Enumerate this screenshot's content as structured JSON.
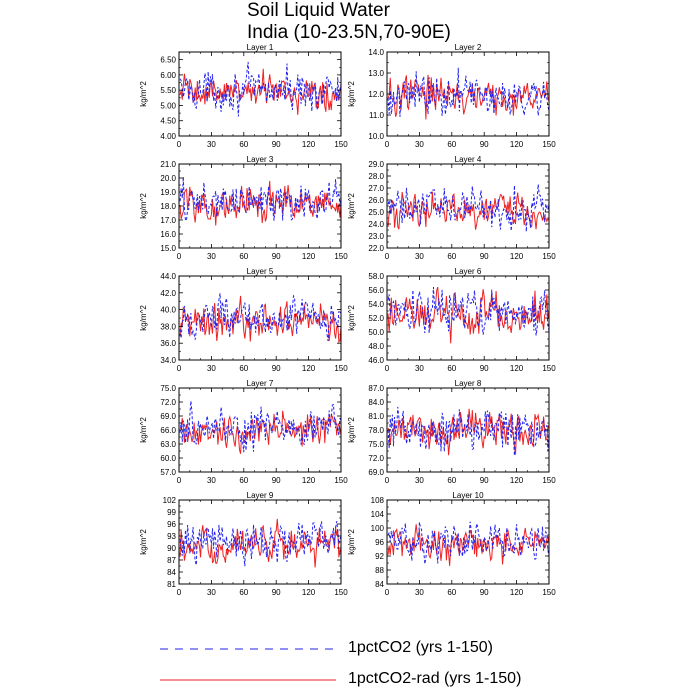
{
  "figure": {
    "title": "Soil Liquid Water",
    "subtitle": "India (10-23.5N,70-90E)"
  },
  "legend": {
    "entries": [
      {
        "label": "1pctCO2 (yrs 1-150)",
        "color": "#2222ee",
        "dash": "dashed"
      },
      {
        "label": "1pctCO2-rad (yrs 1-150)",
        "color": "#ee2222",
        "dash": "solid"
      }
    ]
  },
  "chart_data": [
    {
      "type": "line",
      "title": "Layer 1",
      "ylabel": "kg/m^2",
      "xlim": [
        0,
        150
      ],
      "ylim": [
        4.0,
        6.75
      ],
      "xticks": [
        0,
        30,
        60,
        90,
        120,
        150
      ],
      "xtick_labels": [
        "0",
        "30",
        "60",
        "90",
        "120",
        "150"
      ],
      "yticks": [
        4.0,
        4.5,
        5.0,
        5.5,
        6.0,
        6.5
      ],
      "ytick_labels": [
        "4.00",
        "4.50",
        "5.00",
        "5.50",
        "6.00",
        "6.50"
      ],
      "mean": 5.45,
      "amp": 0.35,
      "series": [
        {
          "name": "1pctCO2 (yrs 1-150)"
        },
        {
          "name": "1pctCO2-rad (yrs 1-150)"
        }
      ]
    },
    {
      "type": "line",
      "title": "Layer 2",
      "ylabel": "kg/m^2",
      "xlim": [
        0,
        150
      ],
      "ylim": [
        10.0,
        14.0
      ],
      "xticks": [
        0,
        30,
        60,
        90,
        120,
        150
      ],
      "xtick_labels": [
        "0",
        "30",
        "60",
        "90",
        "120",
        "150"
      ],
      "yticks": [
        10.0,
        11.0,
        12.0,
        13.0,
        14.0
      ],
      "ytick_labels": [
        "10.0",
        "11.0",
        "12.0",
        "13.0",
        "14.0"
      ],
      "mean": 11.9,
      "amp": 0.55,
      "series": [
        {
          "name": "1pctCO2 (yrs 1-150)"
        },
        {
          "name": "1pctCO2-rad (yrs 1-150)"
        }
      ]
    },
    {
      "type": "line",
      "title": "Layer 3",
      "ylabel": "kg/m^2",
      "xlim": [
        0,
        150
      ],
      "ylim": [
        15.0,
        21.0
      ],
      "xticks": [
        0,
        30,
        60,
        90,
        120,
        150
      ],
      "xtick_labels": [
        "0",
        "30",
        "60",
        "90",
        "120",
        "150"
      ],
      "yticks": [
        15.0,
        16.0,
        17.0,
        18.0,
        19.0,
        20.0,
        21.0
      ],
      "ytick_labels": [
        "15.0",
        "16.0",
        "17.0",
        "18.0",
        "19.0",
        "20.0",
        "21.0"
      ],
      "mean": 18.2,
      "amp": 0.8,
      "series": [
        {
          "name": "1pctCO2 (yrs 1-150)"
        },
        {
          "name": "1pctCO2-rad (yrs 1-150)"
        }
      ]
    },
    {
      "type": "line",
      "title": "Layer 4",
      "ylabel": "kg/m^2",
      "xlim": [
        0,
        150
      ],
      "ylim": [
        22.0,
        29.0
      ],
      "xticks": [
        0,
        30,
        60,
        90,
        120,
        150
      ],
      "xtick_labels": [
        "0",
        "30",
        "60",
        "90",
        "120",
        "150"
      ],
      "yticks": [
        22.0,
        23.0,
        24.0,
        25.0,
        26.0,
        27.0,
        28.0,
        29.0
      ],
      "ytick_labels": [
        "22.0",
        "23.0",
        "24.0",
        "25.0",
        "26.0",
        "27.0",
        "28.0",
        "29.0"
      ],
      "mean": 25.2,
      "amp": 0.9,
      "series": [
        {
          "name": "1pctCO2 (yrs 1-150)"
        },
        {
          "name": "1pctCO2-rad (yrs 1-150)"
        }
      ]
    },
    {
      "type": "line",
      "title": "Layer 5",
      "ylabel": "kg/m^2",
      "xlim": [
        0,
        150
      ],
      "ylim": [
        34.0,
        44.0
      ],
      "xticks": [
        0,
        30,
        60,
        90,
        120,
        150
      ],
      "xtick_labels": [
        "0",
        "30",
        "60",
        "90",
        "120",
        "150"
      ],
      "yticks": [
        34.0,
        36.0,
        38.0,
        40.0,
        42.0,
        44.0
      ],
      "ytick_labels": [
        "34.0",
        "36.0",
        "38.0",
        "40.0",
        "42.0",
        "44.0"
      ],
      "mean": 38.8,
      "amp": 1.3,
      "series": [
        {
          "name": "1pctCO2 (yrs 1-150)"
        },
        {
          "name": "1pctCO2-rad (yrs 1-150)"
        }
      ]
    },
    {
      "type": "line",
      "title": "Layer 6",
      "ylabel": "kg/m^2",
      "xlim": [
        0,
        150
      ],
      "ylim": [
        46.0,
        58.0
      ],
      "xticks": [
        0,
        30,
        60,
        90,
        120,
        150
      ],
      "xtick_labels": [
        "0",
        "30",
        "60",
        "90",
        "120",
        "150"
      ],
      "yticks": [
        46.0,
        48.0,
        50.0,
        52.0,
        54.0,
        56.0,
        58.0
      ],
      "ytick_labels": [
        "46.0",
        "48.0",
        "50.0",
        "52.0",
        "54.0",
        "56.0",
        "58.0"
      ],
      "mean": 52.5,
      "amp": 1.8,
      "series": [
        {
          "name": "1pctCO2 (yrs 1-150)"
        },
        {
          "name": "1pctCO2-rad (yrs 1-150)"
        }
      ]
    },
    {
      "type": "line",
      "title": "Layer 7",
      "ylabel": "kg/m^2",
      "xlim": [
        0,
        150
      ],
      "ylim": [
        57.0,
        75.0
      ],
      "xticks": [
        0,
        30,
        60,
        90,
        120,
        150
      ],
      "xtick_labels": [
        "0",
        "30",
        "60",
        "90",
        "120",
        "150"
      ],
      "yticks": [
        57.0,
        60.0,
        63.0,
        66.0,
        69.0,
        72.0,
        75.0
      ],
      "ytick_labels": [
        "57.0",
        "60.0",
        "63.0",
        "66.0",
        "69.0",
        "72.0",
        "75.0"
      ],
      "mean": 66.0,
      "amp": 2.4,
      "series": [
        {
          "name": "1pctCO2 (yrs 1-150)"
        },
        {
          "name": "1pctCO2-rad (yrs 1-150)"
        }
      ]
    },
    {
      "type": "line",
      "title": "Layer 8",
      "ylabel": "kg/m^2",
      "xlim": [
        0,
        150
      ],
      "ylim": [
        69.0,
        87.0
      ],
      "xticks": [
        0,
        30,
        60,
        90,
        120,
        150
      ],
      "xtick_labels": [
        "0",
        "30",
        "60",
        "90",
        "120",
        "150"
      ],
      "yticks": [
        69.0,
        72.0,
        75.0,
        78.0,
        81.0,
        84.0,
        87.0
      ],
      "ytick_labels": [
        "69.0",
        "72.0",
        "75.0",
        "78.0",
        "81.0",
        "84.0",
        "87.0"
      ],
      "mean": 77.8,
      "amp": 2.6,
      "series": [
        {
          "name": "1pctCO2 (yrs 1-150)"
        },
        {
          "name": "1pctCO2-rad (yrs 1-150)"
        }
      ]
    },
    {
      "type": "line",
      "title": "Layer 9",
      "ylabel": "kg/m^2",
      "xlim": [
        0,
        150
      ],
      "ylim": [
        81,
        102
      ],
      "xticks": [
        0,
        30,
        60,
        90,
        120,
        150
      ],
      "xtick_labels": [
        "0",
        "30",
        "60",
        "90",
        "120",
        "150"
      ],
      "yticks": [
        81,
        84,
        87,
        90,
        93,
        96,
        99,
        102
      ],
      "ytick_labels": [
        "81",
        "84",
        "87",
        "90",
        "93",
        "96",
        "99",
        "102"
      ],
      "mean": 91.2,
      "amp": 2.8,
      "series": [
        {
          "name": "1pctCO2 (yrs 1-150)"
        },
        {
          "name": "1pctCO2-rad (yrs 1-150)"
        }
      ]
    },
    {
      "type": "line",
      "title": "Layer 10",
      "ylabel": "kg/m^2",
      "xlim": [
        0,
        150
      ],
      "ylim": [
        84,
        108
      ],
      "xticks": [
        0,
        30,
        60,
        90,
        120,
        150
      ],
      "xtick_labels": [
        "0",
        "30",
        "60",
        "90",
        "120",
        "150"
      ],
      "yticks": [
        84,
        88,
        92,
        96,
        100,
        104,
        108
      ],
      "ytick_labels": [
        "84",
        "88",
        "92",
        "96",
        "100",
        "104",
        "108"
      ],
      "mean": 95.8,
      "amp": 3.0,
      "series": [
        {
          "name": "1pctCO2 (yrs 1-150)"
        },
        {
          "name": "1pctCO2-rad (yrs 1-150)"
        }
      ]
    }
  ]
}
